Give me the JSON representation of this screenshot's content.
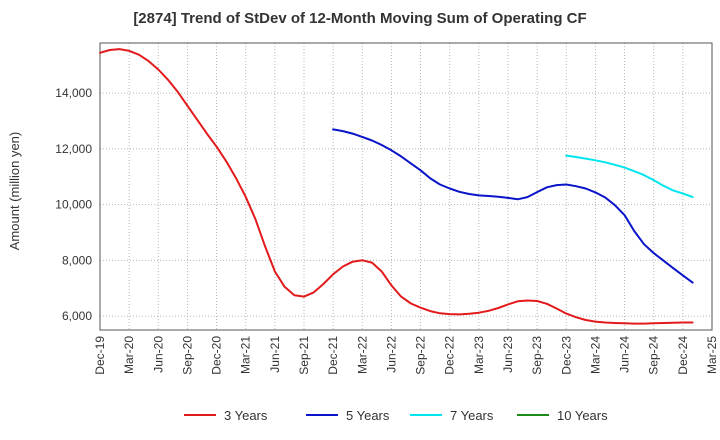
{
  "chart_data": {
    "type": "line",
    "title": "[2874]  Trend of StDev of 12-Month Moving Sum of Operating CF",
    "xlabel": "",
    "ylabel": "Amount (million yen)",
    "ylim": [
      5500,
      15800
    ],
    "yticks": [
      6000,
      8000,
      10000,
      12000,
      14000
    ],
    "ytick_labels": [
      "6,000",
      "8,000",
      "10,000",
      "12,000",
      "14,000"
    ],
    "xticks": [
      "Dec-19",
      "Mar-20",
      "Jun-20",
      "Sep-20",
      "Dec-20",
      "Mar-21",
      "Jun-21",
      "Sep-21",
      "Dec-21",
      "Mar-22",
      "Jun-22",
      "Sep-22",
      "Dec-22",
      "Mar-23",
      "Jun-23",
      "Sep-23",
      "Dec-23",
      "Mar-24",
      "Jun-24",
      "Sep-24",
      "Dec-24",
      "Mar-25"
    ],
    "grid": true,
    "legend_position": "bottom",
    "series": [
      {
        "name": "3 Years",
        "color": "#e31a1c",
        "start_index": 0,
        "values": [
          15450,
          15550,
          15580,
          15520,
          15380,
          15150,
          14850,
          14480,
          14050,
          13550,
          13050,
          12550,
          12080,
          11550,
          10950,
          10280,
          9480,
          8500,
          7600,
          7050,
          6750,
          6700,
          6850,
          7150,
          7500,
          7780,
          7950,
          8000,
          7920,
          7600,
          7100,
          6700,
          6450,
          6300,
          6180,
          6100,
          6070,
          6060,
          6080,
          6120,
          6190,
          6290,
          6420,
          6530,
          6560,
          6540,
          6440,
          6270,
          6090,
          5960,
          5860,
          5800,
          5770,
          5750,
          5740,
          5730,
          5730,
          5740,
          5750,
          5760,
          5770,
          5770
        ]
      },
      {
        "name": "5 Years",
        "color": "#0a14c8",
        "start_index": 24,
        "values": [
          12700,
          12640,
          12550,
          12430,
          12300,
          12140,
          11950,
          11730,
          11480,
          11230,
          10940,
          10720,
          10580,
          10460,
          10380,
          10330,
          10310,
          10280,
          10240,
          10190,
          10270,
          10450,
          10620,
          10700,
          10720,
          10660,
          10580,
          10440,
          10260,
          9980,
          9620,
          9050,
          8580,
          8260,
          7990,
          7720,
          7460,
          7200
        ]
      },
      {
        "name": "7 Years",
        "color": "#00e5ee",
        "start_index": 48,
        "values": [
          11760,
          11710,
          11650,
          11590,
          11520,
          11430,
          11330,
          11200,
          11060,
          10880,
          10680,
          10510,
          10400,
          10270
        ]
      },
      {
        "name": "10 Years",
        "color": "#1a8c1a",
        "start_index": 0,
        "values": []
      }
    ]
  }
}
